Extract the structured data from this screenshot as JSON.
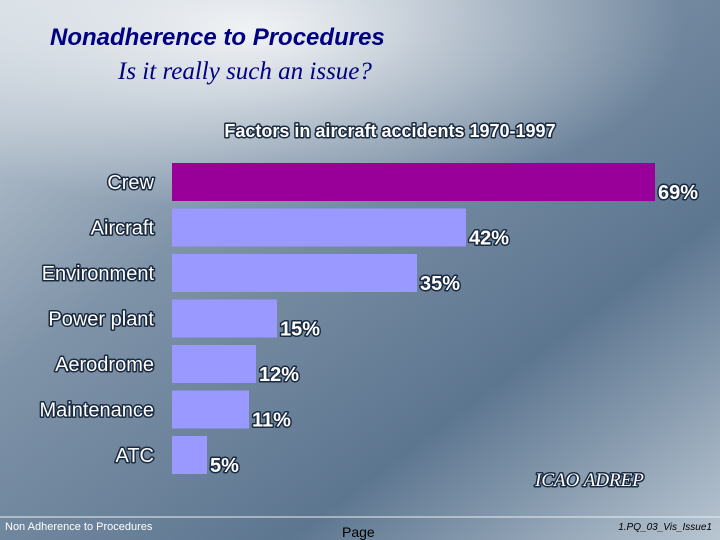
{
  "slide": {
    "title": "Nonadherence to Procedures",
    "subtitle": "Is it really such an issue?",
    "footer_left": "Non Adherence to Procedures",
    "footer_center": "Page",
    "footer_right": "1.PQ_03_Vis_Issue1"
  },
  "chart_data": {
    "type": "bar",
    "orientation": "horizontal",
    "title": "Factors in aircraft accidents 1970-1997",
    "source": "ICAO ADREP",
    "categories": [
      "Crew",
      "Aircraft",
      "Environment",
      "Power plant",
      "Aerodrome",
      "Maintenance",
      "ATC"
    ],
    "values": [
      69,
      42,
      35,
      15,
      12,
      11,
      5
    ],
    "value_labels": [
      "69%",
      "42%",
      "35%",
      "15%",
      "12%",
      "11%",
      "5%"
    ],
    "colors": [
      "#990099",
      "#9999ff",
      "#9999ff",
      "#9999ff",
      "#9999ff",
      "#9999ff",
      "#9999ff"
    ]
  }
}
